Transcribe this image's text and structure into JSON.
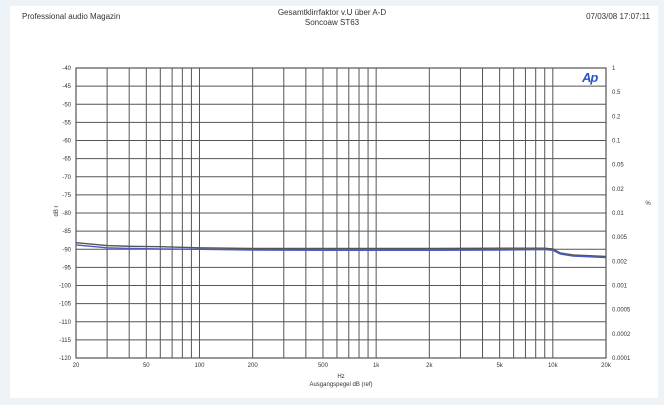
{
  "header": {
    "left": "Professional audio Magazin",
    "center_line1": "Gesamtklirrfaktor v.U über A-D",
    "center_line2": "Soncoaw ST63",
    "right": "07/03/08 17:07:11"
  },
  "logo": "Ap",
  "chart_data": {
    "type": "line",
    "title": "Gesamtklirrfaktor v.U über A-D",
    "subtitle": "Soncoaw ST63",
    "xlabel": "Hz",
    "xlabel2": "Ausgangspegel dB (ref)",
    "ylabel": "dB r",
    "ylabel_right": "%",
    "xscale": "log",
    "xlim": [
      20,
      20000
    ],
    "ylim": [
      -120,
      -40
    ],
    "ylim_right_log": [
      0.0001,
      1
    ],
    "grid": true,
    "x_ticks": [
      20,
      50,
      100,
      200,
      500,
      1000,
      2000,
      5000,
      10000,
      20000
    ],
    "x_tick_labels": [
      "20",
      "50",
      "100",
      "200",
      "500",
      "1k",
      "2k",
      "5k",
      "10k",
      "20k"
    ],
    "y_ticks": [
      -40,
      -45,
      -50,
      -55,
      -60,
      -65,
      -70,
      -75,
      -80,
      -85,
      -90,
      -95,
      -100,
      -105,
      -110,
      -115,
      -120
    ],
    "y_tick_labels": [
      "-40",
      "-45",
      "-50",
      "-55",
      "-60",
      "-65",
      "-70",
      "-75",
      "-80",
      "-85",
      "-90",
      "-95",
      "-100",
      "-105",
      "-110",
      "-115",
      "-120"
    ],
    "y2_tick_labels": [
      "1",
      "0.5",
      "0.2",
      "0.1",
      "0.05",
      "0.02",
      "0.01",
      "0.005",
      "0.002",
      "0.001",
      "0.0005",
      "0.0002",
      "0.0001"
    ],
    "series": [
      {
        "color": "#555555",
        "x": [
          20,
          30,
          40,
          60,
          100,
          200,
          500,
          1000,
          2000,
          5000,
          9000,
          10000,
          11000,
          13000,
          20000
        ],
        "y": [
          -88.2,
          -89.0,
          -89.2,
          -89.3,
          -89.6,
          -89.8,
          -89.8,
          -89.8,
          -89.8,
          -89.7,
          -89.7,
          -89.9,
          -91.0,
          -91.6,
          -92.0
        ]
      },
      {
        "color": "#4a5bc4",
        "x": [
          20,
          30,
          40,
          60,
          100,
          200,
          500,
          1000,
          2000,
          5000,
          9000,
          10000,
          11000,
          13000,
          20000
        ],
        "y": [
          -88.8,
          -89.6,
          -89.8,
          -89.9,
          -90.0,
          -90.2,
          -90.3,
          -90.3,
          -90.3,
          -90.2,
          -90.1,
          -90.3,
          -91.3,
          -91.9,
          -92.3
        ]
      }
    ]
  }
}
